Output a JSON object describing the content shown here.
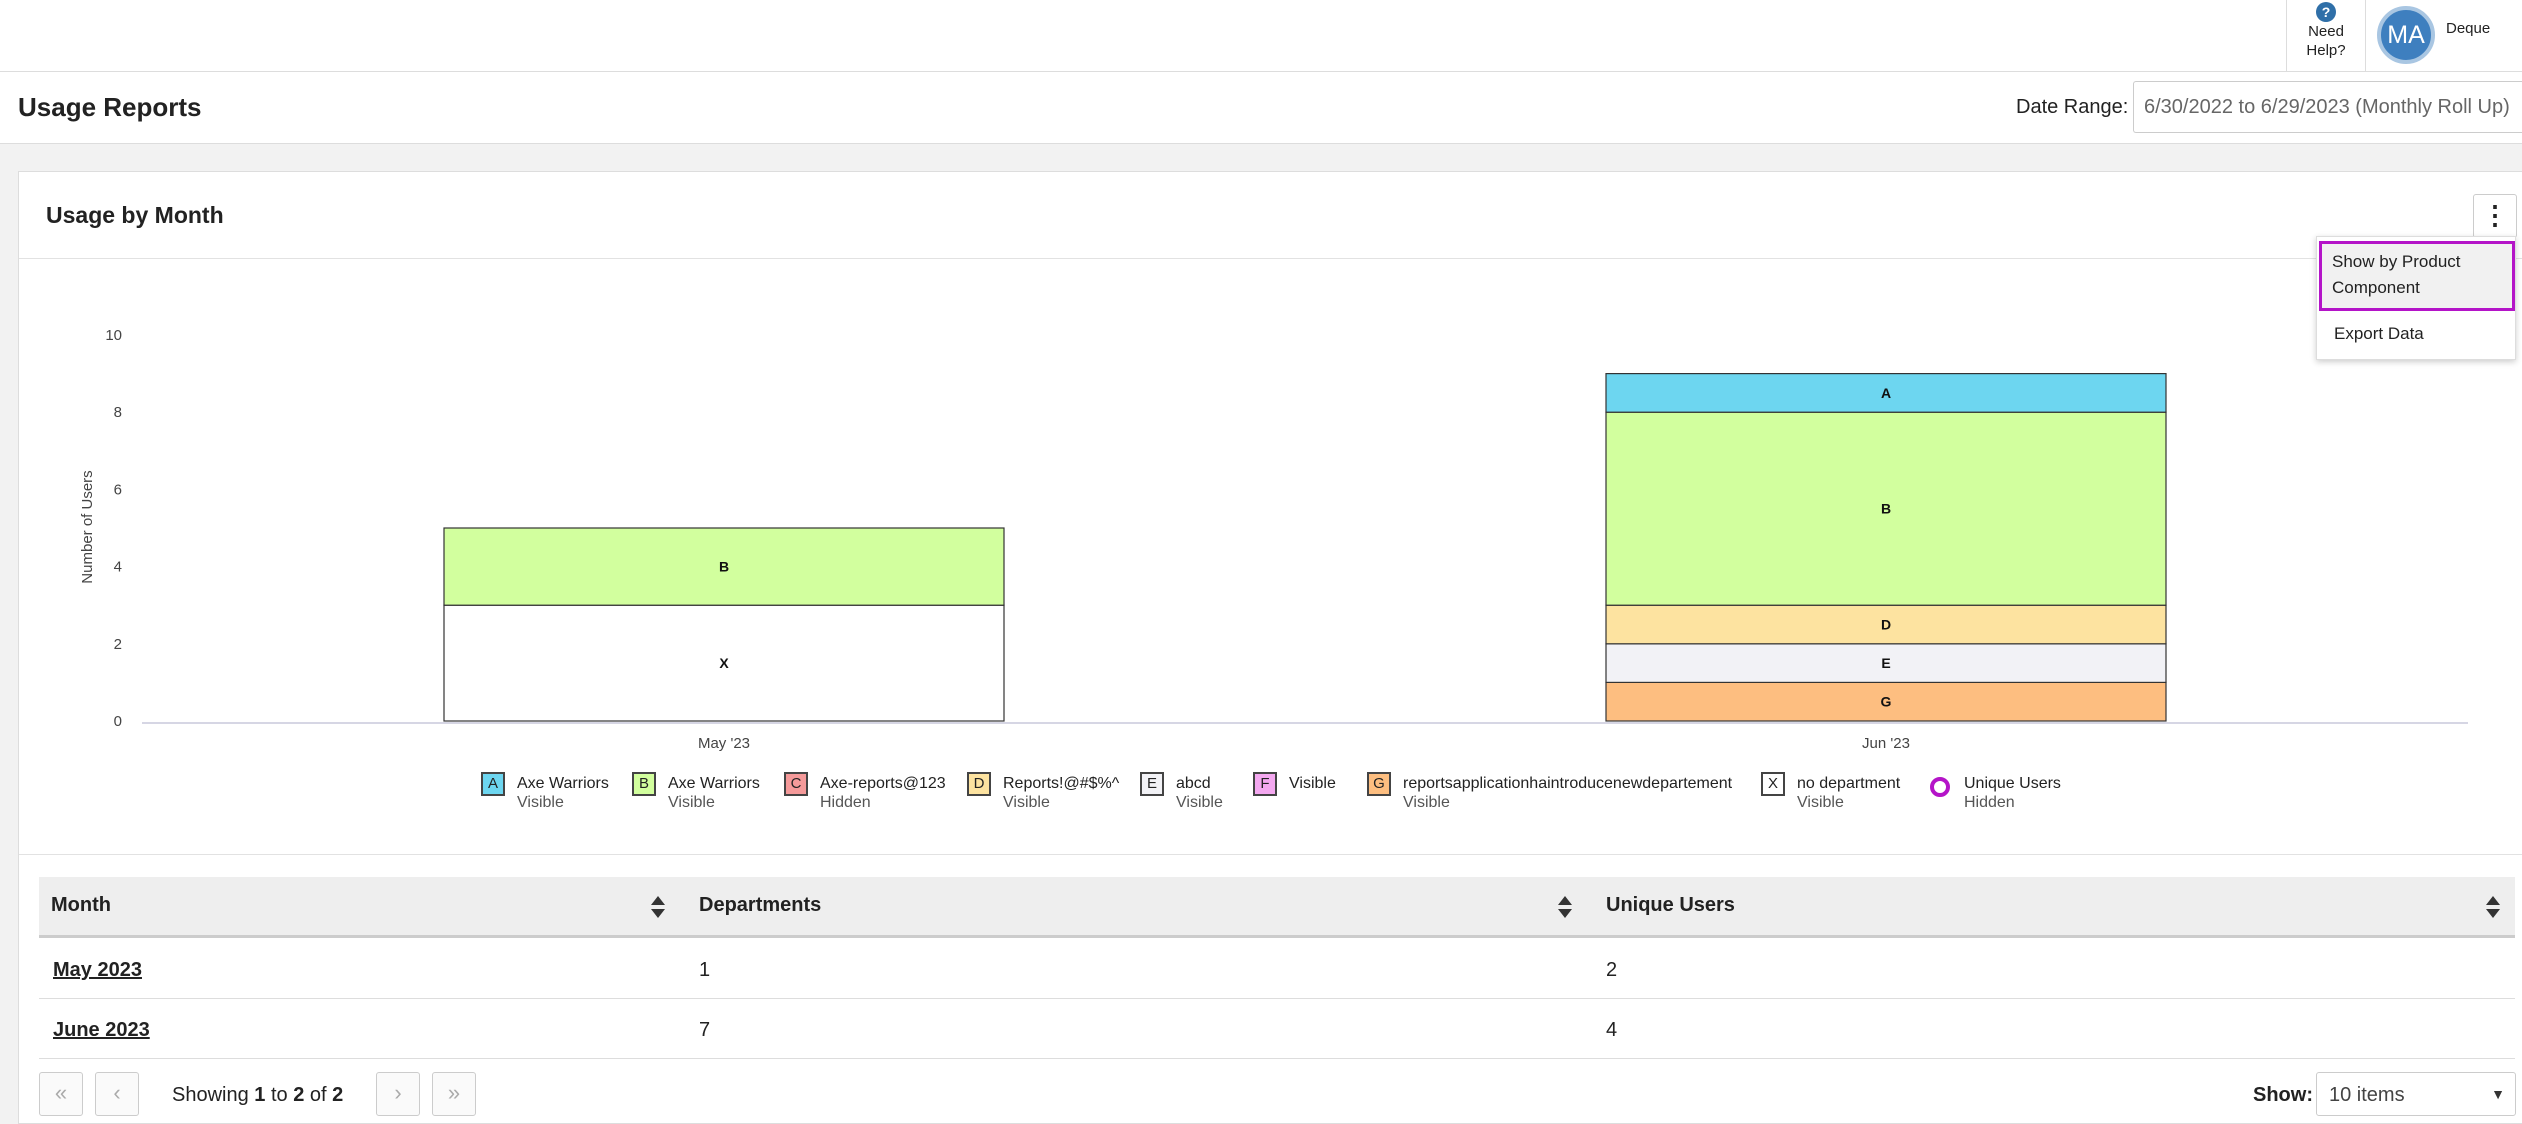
{
  "header": {
    "help_line1": "Need",
    "help_line2": "Help?",
    "help_icon": "question-circle-icon",
    "avatar_initials": "MA",
    "user_name": "Deque"
  },
  "page": {
    "title": "Usage Reports",
    "date_range_label": "Date Range:",
    "date_range_value": "6/30/2022 to 6/29/2023 (Monthly Roll Up)"
  },
  "card": {
    "title": "Usage by Month",
    "menu_icon": "kebab-icon",
    "menu_items": [
      "Show by Product Component",
      "Export Data"
    ]
  },
  "chart_data": {
    "type": "bar",
    "stacked": true,
    "ylabel": "Number of Users",
    "xlabel": "",
    "ylim": [
      0,
      10
    ],
    "yticks": [
      "0",
      "2",
      "4",
      "6",
      "8",
      "10"
    ],
    "categories": [
      "May '23",
      "Jun '23"
    ],
    "series": [
      {
        "letter": "A",
        "name": "Axe Warriors",
        "status": "Visible",
        "color": "#6dd6f0",
        "values": [
          0,
          1
        ]
      },
      {
        "letter": "B",
        "name": "Axe Warriors",
        "status": "Visible",
        "color": "#d2ff9e",
        "values": [
          2,
          5
        ]
      },
      {
        "letter": "C",
        "name": "Axe-reports@123",
        "status": "Hidden",
        "color": "#f59a9a",
        "values": [
          0,
          0
        ]
      },
      {
        "letter": "D",
        "name": "Reports!@#$%^",
        "status": "Visible",
        "color": "#fde3a0",
        "values": [
          0,
          1
        ]
      },
      {
        "letter": "E",
        "name": "abcd",
        "status": "Visible",
        "color": "#f2f2f6",
        "values": [
          0,
          1
        ]
      },
      {
        "letter": "F",
        "name": "",
        "status": "Visible",
        "color": "#f4a8f0",
        "values": [
          0,
          0
        ]
      },
      {
        "letter": "G",
        "name": "reportsapplicationhaintroducenewdepartement",
        "status": "Visible",
        "color": "#fdbe80",
        "values": [
          0,
          1
        ]
      },
      {
        "letter": "X",
        "name": "no department",
        "status": "Visible",
        "color": "#ffffff",
        "values": [
          3,
          0
        ]
      }
    ],
    "extra_legend": {
      "name": "Unique Users",
      "status": "Hidden",
      "color": "#b414c8"
    },
    "grid": false,
    "legend_position": "bottom"
  },
  "table": {
    "headers": [
      "Month",
      "Departments",
      "Unique Users"
    ],
    "rows": [
      {
        "month": "May 2023",
        "departments": "1",
        "users": "2"
      },
      {
        "month": "June 2023",
        "departments": "7",
        "users": "4"
      }
    ]
  },
  "pager": {
    "first_icon": "double-chevron-left-icon",
    "prev_icon": "chevron-left-icon",
    "next_icon": "chevron-right-icon",
    "last_icon": "double-chevron-right-icon",
    "showing_prefix": "Showing",
    "from": "1",
    "to_word": "to",
    "to": "2",
    "of_word": "of",
    "total": "2",
    "show_label": "Show:",
    "page_size": "10 items"
  }
}
